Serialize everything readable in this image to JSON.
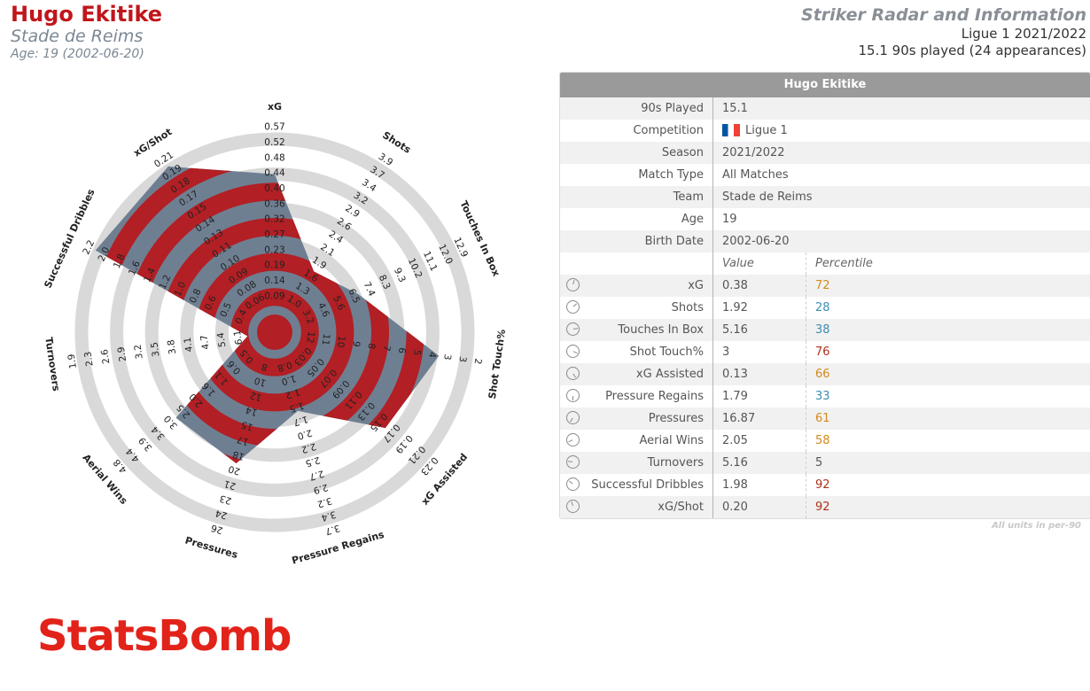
{
  "header": {
    "player": "Hugo Ekitike",
    "club": "Stade de Reims",
    "age_line": "Age: 19 (2002-06-20)",
    "radar_title": "Striker Radar and Information",
    "competition_season": "Ligue 1 2021/2022",
    "played": "15.1 90s played (24 appearances)"
  },
  "colors": {
    "accent": "#c0161b",
    "fill_red": "#b21f24",
    "fill_slate": "#6f7f92",
    "ring_grey": "#d9d9d9",
    "pct_high": "#b0311a",
    "pct_mid": "#d4891b",
    "pct_low": "#3d8eb0",
    "logo": "#e2231a"
  },
  "table": {
    "title": "Hugo Ekitike",
    "info": [
      {
        "label": "90s Played",
        "value": "15.1"
      },
      {
        "label": "Competition",
        "value": "Ligue 1"
      },
      {
        "label": "Season",
        "value": "2021/2022"
      },
      {
        "label": "Match Type",
        "value": "All Matches"
      },
      {
        "label": "Team",
        "value": "Stade de Reims"
      },
      {
        "label": "Age",
        "value": "19"
      },
      {
        "label": "Birth Date",
        "value": "2002-06-20"
      }
    ],
    "value_header": "Value",
    "percentile_header": "Percentile",
    "metrics": [
      {
        "label": "xG",
        "value": "0.38",
        "pct": "72",
        "tone": "mid"
      },
      {
        "label": "Shots",
        "value": "1.92",
        "pct": "28",
        "tone": "low"
      },
      {
        "label": "Touches In Box",
        "value": "5.16",
        "pct": "38",
        "tone": "low"
      },
      {
        "label": "Shot Touch%",
        "value": "3",
        "pct": "76",
        "tone": "high"
      },
      {
        "label": "xG Assisted",
        "value": "0.13",
        "pct": "66",
        "tone": "mid"
      },
      {
        "label": "Pressure Regains",
        "value": "1.79",
        "pct": "33",
        "tone": "low"
      },
      {
        "label": "Pressures",
        "value": "16.87",
        "pct": "61",
        "tone": "mid"
      },
      {
        "label": "Aerial Wins",
        "value": "2.05",
        "pct": "58",
        "tone": "mid"
      },
      {
        "label": "Turnovers",
        "value": "5.16",
        "pct": "5",
        "tone": "neutral"
      },
      {
        "label": "Successful Dribbles",
        "value": "1.98",
        "pct": "92",
        "tone": "high"
      },
      {
        "label": "xG/Shot",
        "value": "0.20",
        "pct": "92",
        "tone": "high"
      }
    ],
    "footnote": "All units in per-90"
  },
  "logo": "StatsBomb",
  "chart_data": {
    "type": "radar",
    "title": "Striker Radar and Information",
    "axes": [
      {
        "name": "xG",
        "ticks": [
          "0.09",
          "0.14",
          "0.19",
          "0.23",
          "0.27",
          "0.32",
          "0.36",
          "0.40",
          "0.44",
          "0.48",
          "0.52",
          "0.57"
        ],
        "value": 0.38
      },
      {
        "name": "Shots",
        "ticks": [
          "1.0",
          "1.3",
          "1.6",
          "1.9",
          "2.1",
          "2.4",
          "2.6",
          "2.9",
          "3.2",
          "3.4",
          "3.7",
          "3.9"
        ],
        "value": 1.92
      },
      {
        "name": "Touches In Box",
        "ticks": [
          "3.2",
          "4.6",
          "5.6",
          "6.5",
          "7.4",
          "8.3",
          "9.3",
          "10.2",
          "11.1",
          "12.0",
          "12.9"
        ],
        "value": 5.16
      },
      {
        "name": "Shot Touch%",
        "ticks": [
          "12",
          "11",
          "10",
          "9",
          "8",
          "7",
          "6",
          "5",
          "4",
          "3",
          "3",
          "2"
        ],
        "value": 3
      },
      {
        "name": "xG Assisted",
        "ticks": [
          "0.03",
          "0.05",
          "0.07",
          "0.09",
          "0.11",
          "0.13",
          "0.15",
          "0.17",
          "0.19",
          "0.21",
          "0.23"
        ],
        "value": 0.13
      },
      {
        "name": "Pressure Regains",
        "ticks": [
          "0.8",
          "1.0",
          "1.2",
          "1.5",
          "1.7",
          "2.0",
          "2.2",
          "2.5",
          "2.7",
          "2.9",
          "3.2",
          "3.4",
          "3.7"
        ],
        "value": 1.79
      },
      {
        "name": "Pressures",
        "ticks": [
          "8",
          "10",
          "12",
          "14",
          "15",
          "17",
          "18",
          "20",
          "21",
          "23",
          "24",
          "26"
        ],
        "value": 16.87
      },
      {
        "name": "Aerial Wins",
        "ticks": [
          "0.5",
          "0.6",
          "1.1",
          "1.6",
          "2.0",
          "2.5",
          "3.0",
          "3.4",
          "3.9",
          "4.4",
          "4.8"
        ],
        "value": 2.05
      },
      {
        "name": "Turnovers",
        "ticks": [
          "6.1",
          "5.4",
          "4.7",
          "4.1",
          "3.8",
          "3.5",
          "3.2",
          "2.9",
          "2.6",
          "2.3",
          "1.9"
        ],
        "value": 5.16
      },
      {
        "name": "Successful Dribbles",
        "ticks": [
          "0.4",
          "0.5",
          "0.6",
          "0.8",
          "1.0",
          "1.2",
          "1.4",
          "1.6",
          "1.8",
          "2.0",
          "2.2"
        ],
        "value": 1.98
      },
      {
        "name": "xG/Shot",
        "ticks": [
          "0.06",
          "0.08",
          "0.09",
          "0.10",
          "0.11",
          "0.13",
          "0.14",
          "0.15",
          "0.17",
          "0.18",
          "0.19",
          "0.21"
        ],
        "value": 0.2
      }
    ],
    "percentiles": [
      72,
      28,
      38,
      76,
      66,
      33,
      61,
      58,
      5,
      92,
      92
    ],
    "grid": true,
    "legend": "none"
  }
}
